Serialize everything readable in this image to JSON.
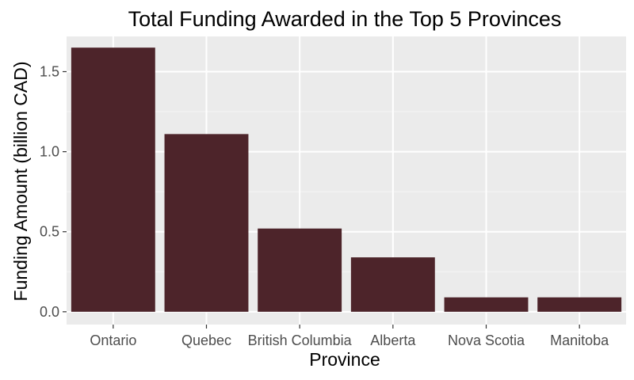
{
  "chart_data": {
    "type": "bar",
    "title": "Total Funding Awarded in the Top 5 Provinces",
    "xlabel": "Province",
    "ylabel": "Funding Amount (billion CAD)",
    "categories": [
      "Ontario",
      "Quebec",
      "British Columbia",
      "Alberta",
      "Nova Scotia",
      "Manitoba"
    ],
    "values": [
      1.65,
      1.11,
      0.52,
      0.34,
      0.09,
      0.09
    ],
    "ylim": [
      -0.08,
      1.72
    ],
    "yticks": [
      0.0,
      0.5,
      1.0,
      1.5
    ],
    "ytick_labels": [
      "0.0",
      "0.5",
      "1.0",
      "1.5"
    ],
    "grid": true,
    "legend": "none"
  },
  "colors": {
    "bar": "#4d242a",
    "panel_background": "#ebebeb",
    "grid_major": "#ffffff",
    "grid_minor": "#f5f5f5",
    "tick_text": "#4d4d4d",
    "tick_mark": "#333333"
  }
}
